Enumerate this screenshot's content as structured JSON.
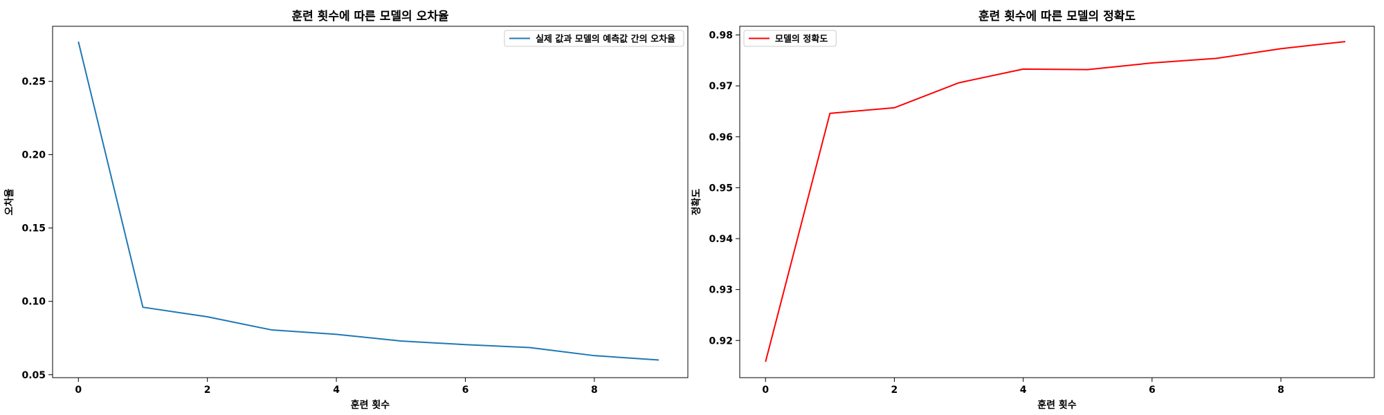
{
  "chart_data": [
    {
      "type": "line",
      "title": "훈련 횟수에 따른 모델의 오차율",
      "xlabel": "훈련 횟수",
      "ylabel": "오차율",
      "x": [
        0,
        1,
        2,
        3,
        4,
        5,
        6,
        7,
        8,
        9
      ],
      "xticks": [
        0,
        2,
        4,
        6,
        8
      ],
      "yticks": [
        0.05,
        0.1,
        0.15,
        0.2,
        0.25
      ],
      "xlim": [
        -0.4,
        9.45
      ],
      "ylim": [
        0.048,
        0.2875
      ],
      "grid": false,
      "legend_position": "top-right",
      "series": [
        {
          "name": "실제 값과 모델의 예측값 간의 오차율",
          "color": "#1f77b4",
          "values": [
            0.277,
            0.096,
            0.0895,
            0.0805,
            0.0775,
            0.073,
            0.0705,
            0.0685,
            0.063,
            0.06
          ]
        }
      ]
    },
    {
      "type": "line",
      "title": "훈련 횟수에 따른 모델의 정확도",
      "xlabel": "훈련 횟수",
      "ylabel": "정확도",
      "x": [
        0,
        1,
        2,
        3,
        4,
        5,
        6,
        7,
        8,
        9
      ],
      "xticks": [
        0,
        2,
        4,
        6,
        8
      ],
      "yticks": [
        0.92,
        0.93,
        0.94,
        0.95,
        0.96,
        0.97,
        0.98
      ],
      "xlim": [
        -0.4,
        9.45
      ],
      "ylim": [
        0.9127,
        0.9817
      ],
      "grid": false,
      "legend_position": "top-left",
      "series": [
        {
          "name": "모델의 정확도",
          "color": "#ff0000",
          "values": [
            0.9158,
            0.9646,
            0.9657,
            0.9706,
            0.9733,
            0.9732,
            0.9745,
            0.9754,
            0.9773,
            0.9787
          ]
        }
      ]
    }
  ]
}
